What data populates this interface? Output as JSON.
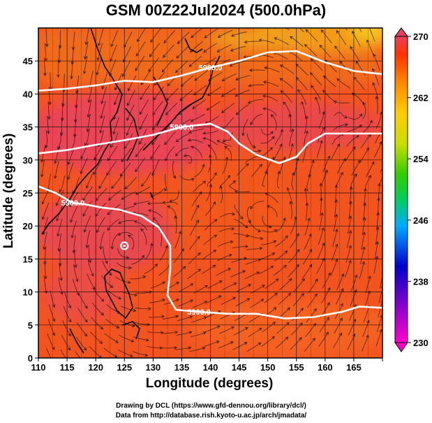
{
  "title": "GSM 00Z22Jul2024 (500.0hPa)",
  "credits": [
    "Drawing by DCL (https://www.gfd-dennou.org/library/dcl/)",
    "Data from http://database.rish.kyoto-u.ac.jp/arch/jmadata/"
  ],
  "chart_data": {
    "type": "heatmap",
    "title": "GSM 00Z22Jul2024 (500.0hPa)",
    "xlabel": "Longitude (degrees)",
    "ylabel": "Latitude  (degrees)",
    "xlim": [
      110,
      170
    ],
    "ylim": [
      0,
      50
    ],
    "x_ticks": [
      110,
      115,
      120,
      125,
      130,
      135,
      140,
      145,
      150,
      155,
      160,
      165
    ],
    "y_ticks": [
      0,
      5,
      10,
      15,
      20,
      25,
      30,
      35,
      40,
      45
    ],
    "grid": true,
    "colorbar": {
      "min": 230,
      "max": 270,
      "ticks": [
        230,
        238,
        246,
        254,
        262,
        270
      ],
      "colors": [
        "#ff00cc",
        "#8800cc",
        "#0000cc",
        "#00aaff",
        "#00cc66",
        "#33cc00",
        "#ccdd00",
        "#ffcc00",
        "#ff8800",
        "#ff3300",
        "#e8405a"
      ]
    },
    "contour_label": "5900.0",
    "contours_5900": [
      [
        [
          110,
          40.5
        ],
        [
          115,
          40.8
        ],
        [
          120,
          41.3
        ],
        [
          125,
          42.0
        ],
        [
          130,
          41.8
        ],
        [
          135,
          42.8
        ],
        [
          140,
          44.0
        ],
        [
          145,
          45.0
        ],
        [
          150,
          46.3
        ],
        [
          155,
          46.5
        ],
        [
          160,
          44.8
        ],
        [
          165,
          43.5
        ],
        [
          170,
          43.0
        ]
      ],
      [
        [
          110,
          31.0
        ],
        [
          115,
          31.5
        ],
        [
          120,
          32.3
        ],
        [
          125,
          33.0
        ],
        [
          130,
          33.8
        ],
        [
          135,
          35.0
        ],
        [
          140,
          35.5
        ],
        [
          143,
          34.3
        ],
        [
          145,
          32.5
        ],
        [
          148,
          30.8
        ],
        [
          152,
          29.5
        ],
        [
          155,
          30.5
        ],
        [
          157,
          32.5
        ],
        [
          160,
          34.0
        ],
        [
          165,
          34.0
        ],
        [
          170,
          34.0
        ]
      ],
      [
        [
          110,
          26.0
        ],
        [
          113,
          25.0
        ],
        [
          116,
          23.5
        ],
        [
          118,
          23.3
        ],
        [
          121,
          22.8
        ],
        [
          124,
          22.5
        ],
        [
          128,
          21.5
        ],
        [
          131,
          19.8
        ],
        [
          133,
          17.0
        ],
        [
          133,
          13.5
        ],
        [
          132.5,
          9.5
        ],
        [
          134,
          7.3
        ],
        [
          138,
          7.0
        ],
        [
          143,
          6.7
        ],
        [
          148,
          6.7
        ],
        [
          153,
          6.0
        ],
        [
          158,
          6.2
        ],
        [
          163,
          7.0
        ],
        [
          166,
          7.8
        ],
        [
          170,
          7.6
        ]
      ]
    ],
    "temperature_K": [
      {
        "region": "north-east corner (50N, 140-170E)",
        "value": 264
      },
      {
        "region": "north (45N)",
        "value": 266
      },
      {
        "region": "mid latitudes (30-40N)",
        "value": 269
      },
      {
        "region": "subtropics (15-25N, 110-135E)",
        "value": 269
      },
      {
        "region": "tropics (0-10N, 135-170E)",
        "value": 267
      }
    ],
    "circulation_centers": [
      {
        "name": "cyclone",
        "lon": 125,
        "lat": 17
      },
      {
        "name": "vortex",
        "lon": 151,
        "lat": 21
      },
      {
        "name": "vortex",
        "lon": 136,
        "lat": 30
      },
      {
        "name": "vortex",
        "lon": 150,
        "lat": 35
      },
      {
        "name": "vortex",
        "lon": 166,
        "lat": 37
      }
    ]
  }
}
